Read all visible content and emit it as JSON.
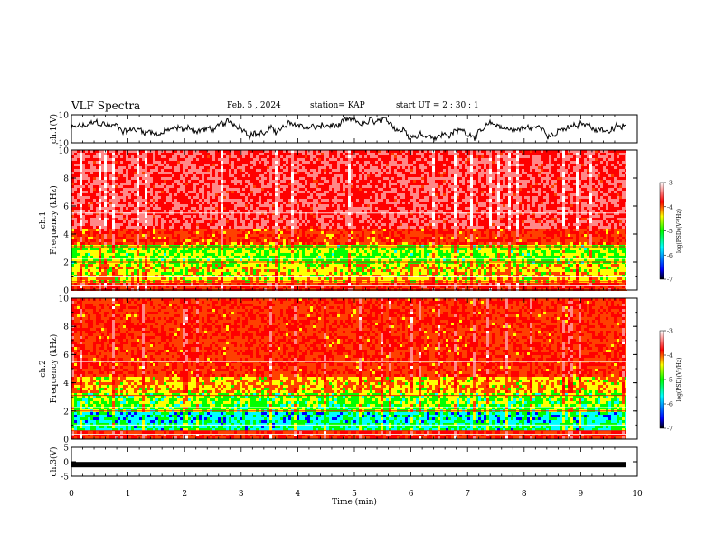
{
  "header": {
    "title": "VLF Spectra",
    "date": "Feb. 5 , 2024",
    "station": "station= KAP",
    "start": "start  UT =   2 : 30 : 1"
  },
  "colors": {
    "background": "#ffffff",
    "trace": "#000000",
    "colormap": [
      "#000000",
      "#0000ff",
      "#00ffff",
      "#00ff00",
      "#ffff00",
      "#ff0000",
      "#ffffff"
    ]
  },
  "chart_data": [
    {
      "type": "line",
      "name": "ch1-waveform",
      "ylabel": "ch.1(V)",
      "ylim": [
        -10,
        10
      ],
      "yticks": [
        "10",
        "-10"
      ],
      "xlim": [
        0,
        10
      ],
      "x_end": 9.8
    },
    {
      "type": "heatmap",
      "name": "ch1-spectrogram",
      "ylabel": "ch.1\nFrequency (kHz)",
      "ylim": [
        0,
        10
      ],
      "yticks": [
        "0",
        "2",
        "4",
        "6",
        "8",
        "10"
      ],
      "xlim": [
        0,
        10
      ],
      "x_end": 9.8,
      "colorbar": {
        "label": "log(PSD)(V²/Hz)",
        "range": [
          -7,
          -3
        ],
        "ticks": [
          "-3",
          "-4",
          "-5",
          "-6",
          "-7"
        ]
      }
    },
    {
      "type": "heatmap",
      "name": "ch2-spectrogram",
      "ylabel": "ch.2\nFrequency (kHz)",
      "ylim": [
        0,
        10
      ],
      "yticks": [
        "0",
        "2",
        "4",
        "6",
        "8",
        "10"
      ],
      "xlim": [
        0,
        10
      ],
      "x_end": 9.8,
      "colorbar": {
        "label": "log(PSD)(V²/Hz)",
        "range": [
          -7,
          -3
        ],
        "ticks": [
          "-3",
          "-4",
          "-5",
          "-6",
          "-7"
        ]
      }
    },
    {
      "type": "line",
      "name": "ch3-waveform",
      "ylabel": "ch.3(V)",
      "ylim": [
        -5,
        5
      ],
      "yticks": [
        "5",
        "0",
        "-5"
      ],
      "xlim": [
        0,
        10
      ],
      "x_end": 9.8,
      "level": -1
    }
  ],
  "xaxis": {
    "label": "Time (min)",
    "ticks": [
      "0",
      "1",
      "2",
      "3",
      "4",
      "5",
      "6",
      "7",
      "8",
      "9",
      "10"
    ]
  }
}
